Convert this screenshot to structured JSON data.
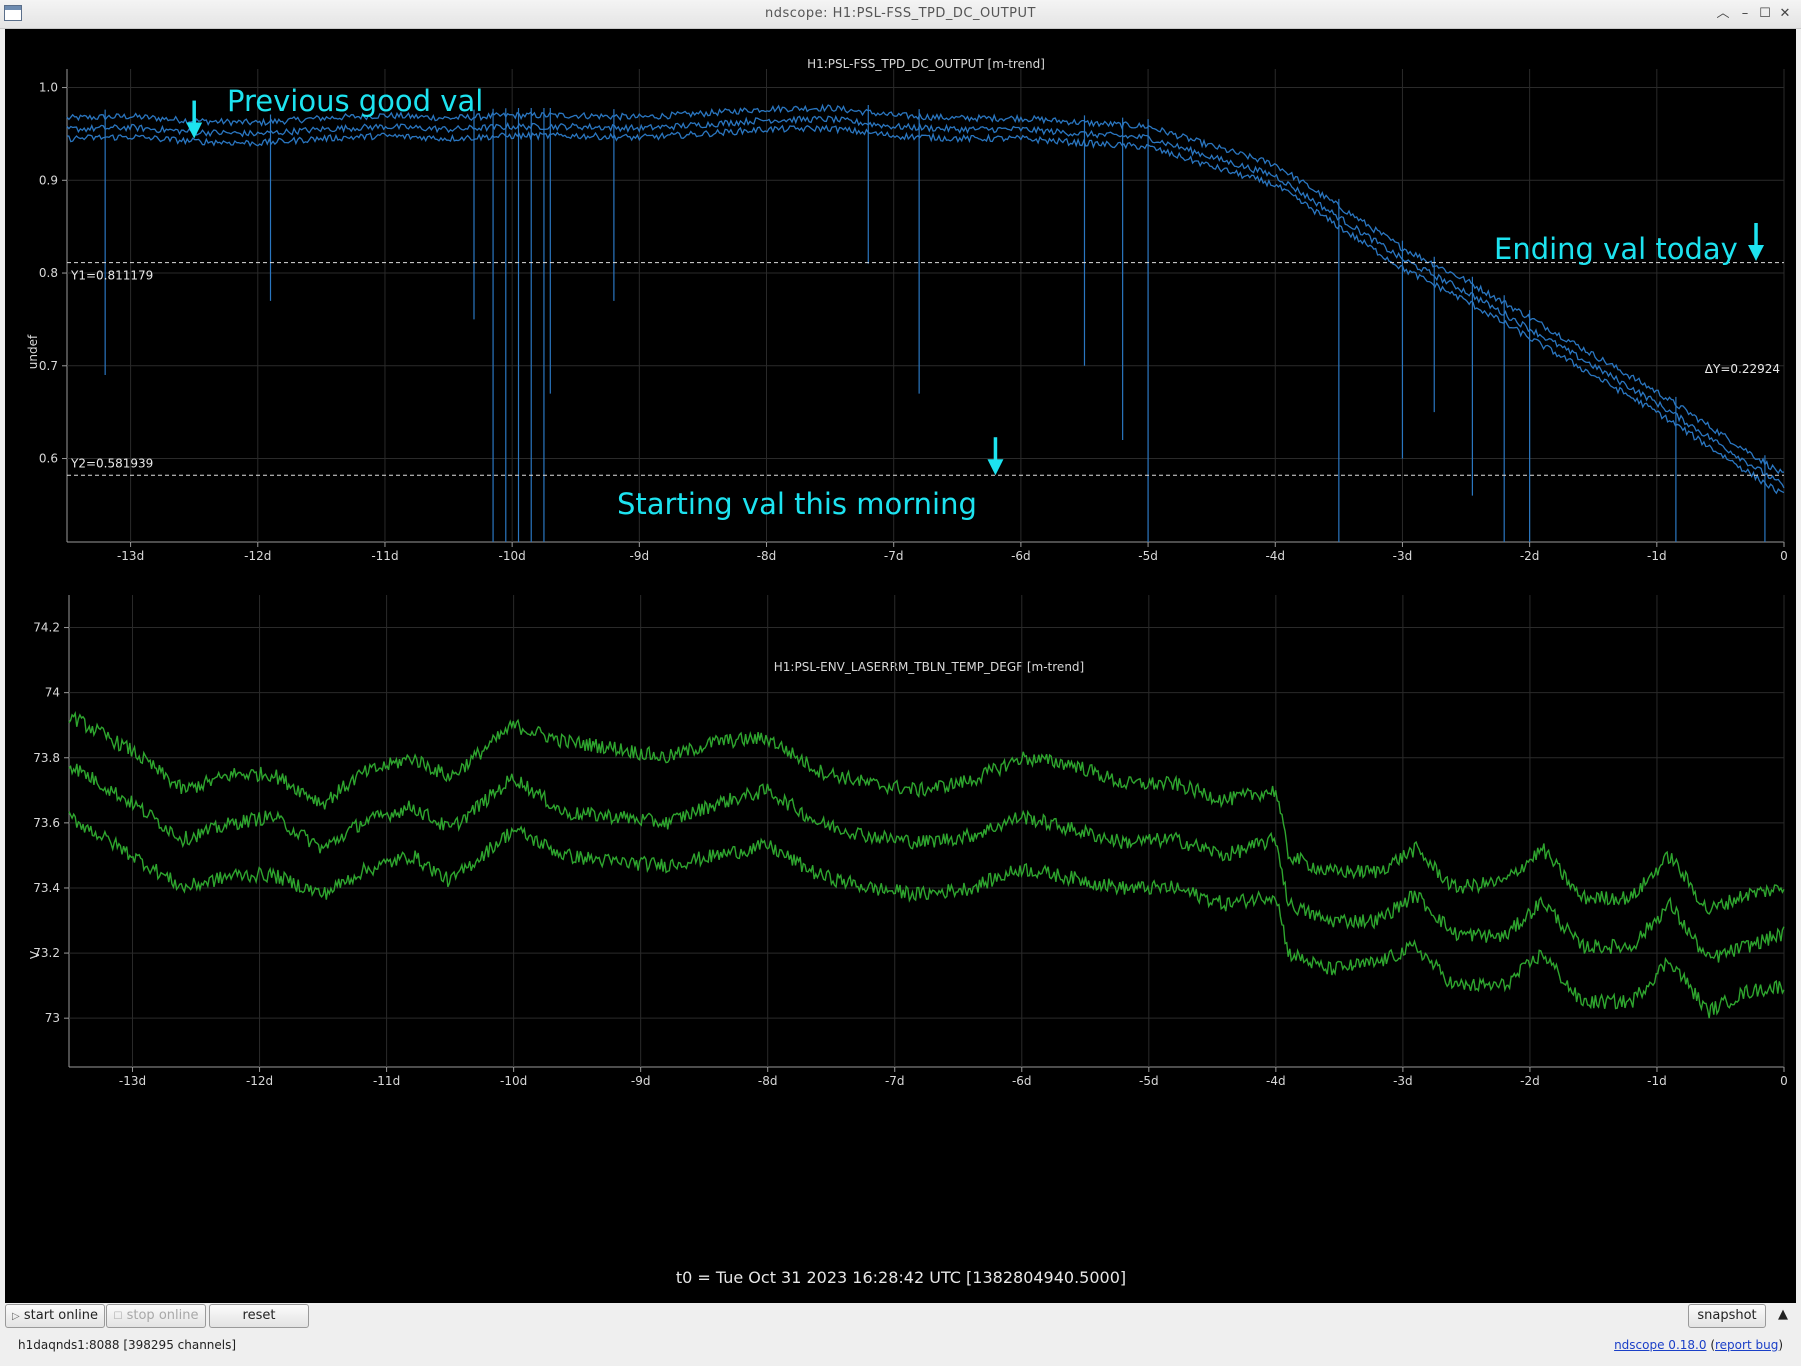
{
  "window": {
    "title": "ndscope: H1:PSL-FSS_TPD_DC_OUTPUT",
    "controls": [
      "chevron-up-icon",
      "minimize-icon",
      "maximize-icon",
      "close-icon"
    ]
  },
  "toolbar": {
    "start_online": "start online",
    "stop_online": "stop online",
    "reset": "reset",
    "snapshot": "snapshot"
  },
  "status": {
    "server": "h1daqnds1:8088  [398295 channels]",
    "version_link": "ndscope 0.18.0",
    "report_link": "report bug"
  },
  "t0_label": "t0 = Tue Oct 31 2023 16:28:42 UTC [1382804940.5000]",
  "colors": {
    "plot_background": "#000000",
    "series_top": "#2a76c0",
    "series_bottom": "#2ea52e",
    "annotation": "#1de3f0",
    "cursor": "#dddddd"
  },
  "cursors": {
    "y1_label": "Y1=0.811179",
    "y2_label": "Y2=0.581939",
    "dy_label": "ΔY=0.22924",
    "y1": 0.811179,
    "y2": 0.581939
  },
  "annotations": [
    {
      "text": "Previous good val",
      "arrow_x": -12.5,
      "arrow_y": 0.945
    },
    {
      "text": "Ending val today",
      "arrow_x": -0.22,
      "arrow_y": 0.813
    },
    {
      "text": "Starting val this morning",
      "arrow_x": -6.2,
      "arrow_y": 0.582
    }
  ],
  "chart_data": [
    {
      "type": "line",
      "title": "H1:PSL-FSS_TPD_DC_OUTPUT [m-trend]",
      "ylabel": "undef",
      "xlabel": "",
      "xlim": [
        -13.5,
        0
      ],
      "ylim": [
        0.51,
        1.02
      ],
      "x_ticks": [
        "-13d",
        "-12d",
        "-11d",
        "-10d",
        "-9d",
        "-8d",
        "-7d",
        "-6d",
        "-5d",
        "-4d",
        "-3d",
        "-2d",
        "-1d",
        "0"
      ],
      "y_ticks": [
        "1.0",
        "0.9",
        "0.8",
        "0.7",
        "0.6"
      ],
      "grid": true,
      "x": [
        -13.5,
        -13,
        -12.5,
        -12,
        -11.5,
        -11,
        -10.5,
        -10,
        -9.5,
        -9,
        -8.5,
        -8,
        -7.5,
        -7,
        -6.5,
        -6,
        -5.5,
        -5,
        -4.5,
        -4,
        -3.5,
        -3,
        -2.5,
        -2,
        -1.5,
        -1,
        -0.5,
        0
      ],
      "series": [
        {
          "values": [
            0.955,
            0.957,
            0.952,
            0.95,
            0.955,
            0.958,
            0.955,
            0.958,
            0.958,
            0.956,
            0.96,
            0.965,
            0.966,
            0.958,
            0.955,
            0.955,
            0.95,
            0.946,
            0.925,
            0.905,
            0.86,
            0.815,
            0.78,
            0.74,
            0.7,
            0.66,
            0.615,
            0.57
          ]
        }
      ],
      "spikes": [
        {
          "x": -13.2,
          "min": 0.69
        },
        {
          "x": -11.9,
          "min": 0.77
        },
        {
          "x": -10.3,
          "min": 0.75
        },
        {
          "x": -10.15,
          "min": 0.51
        },
        {
          "x": -10.05,
          "min": 0.51
        },
        {
          "x": -9.95,
          "min": 0.51
        },
        {
          "x": -9.85,
          "min": 0.51
        },
        {
          "x": -9.75,
          "min": 0.51
        },
        {
          "x": -9.7,
          "min": 0.67
        },
        {
          "x": -9.2,
          "min": 0.77
        },
        {
          "x": -7.2,
          "min": 0.81
        },
        {
          "x": -6.8,
          "min": 0.67
        },
        {
          "x": -5.5,
          "min": 0.7
        },
        {
          "x": -5.2,
          "min": 0.62
        },
        {
          "x": -5.0,
          "min": 0.51
        },
        {
          "x": -3.5,
          "min": 0.51
        },
        {
          "x": -3.0,
          "min": 0.6
        },
        {
          "x": -2.75,
          "min": 0.65
        },
        {
          "x": -2.45,
          "min": 0.56
        },
        {
          "x": -2.2,
          "min": 0.51
        },
        {
          "x": -2.0,
          "min": 0.51
        },
        {
          "x": -0.85,
          "min": 0.51
        },
        {
          "x": -0.15,
          "min": 0.51
        }
      ]
    },
    {
      "type": "line",
      "title": "H1:PSL-ENV_LASERRM_TBLN_TEMP_DEGF [m-trend]",
      "ylabel": "V",
      "xlabel": "",
      "xlim": [
        -13.5,
        0
      ],
      "ylim": [
        72.85,
        74.3
      ],
      "x_ticks": [
        "-13d",
        "-12d",
        "-11d",
        "-10d",
        "-9d",
        "-8d",
        "-7d",
        "-6d",
        "-5d",
        "-4d",
        "-3d",
        "-2d",
        "-1d",
        "0"
      ],
      "y_ticks": [
        "74.2",
        "74",
        "73.8",
        "73.6",
        "73.4",
        "73.2",
        "73"
      ],
      "grid": true,
      "x": [
        -13.5,
        -13,
        -12.6,
        -12.2,
        -11.9,
        -11.5,
        -11.2,
        -10.8,
        -10.5,
        -10.0,
        -9.6,
        -9.2,
        -8.8,
        -8.4,
        -8.0,
        -7.6,
        -7.2,
        -6.8,
        -6.4,
        -6.0,
        -5.6,
        -5.2,
        -4.8,
        -4.4,
        -4.0,
        -3.9,
        -3.6,
        -3.2,
        -2.9,
        -2.6,
        -2.2,
        -1.9,
        -1.6,
        -1.2,
        -0.9,
        -0.6,
        -0.3,
        0
      ],
      "series": [
        {
          "name": "max",
          "values": [
            73.93,
            73.82,
            73.7,
            73.75,
            73.75,
            73.66,
            73.75,
            73.8,
            73.74,
            73.9,
            73.85,
            73.83,
            73.8,
            73.85,
            73.86,
            73.76,
            73.72,
            73.7,
            73.73,
            73.8,
            73.78,
            73.72,
            73.72,
            73.67,
            73.7,
            73.5,
            73.45,
            73.45,
            73.52,
            73.4,
            73.42,
            73.52,
            73.37,
            73.37,
            73.5,
            73.33,
            73.38,
            73.4
          ]
        },
        {
          "name": "mean",
          "values": [
            73.78,
            73.66,
            73.55,
            73.6,
            73.62,
            73.52,
            73.6,
            73.65,
            73.58,
            73.74,
            73.63,
            73.62,
            73.6,
            73.66,
            73.7,
            73.6,
            73.56,
            73.54,
            73.56,
            73.62,
            73.58,
            73.54,
            73.55,
            73.5,
            73.55,
            73.35,
            73.3,
            73.3,
            73.38,
            73.26,
            73.25,
            73.36,
            73.22,
            73.22,
            73.35,
            73.18,
            73.22,
            73.26
          ]
        },
        {
          "name": "min",
          "values": [
            73.62,
            73.5,
            73.4,
            73.44,
            73.44,
            73.38,
            73.45,
            73.5,
            73.42,
            73.58,
            73.5,
            73.48,
            73.47,
            73.5,
            73.53,
            73.44,
            73.4,
            73.38,
            73.4,
            73.46,
            73.43,
            73.4,
            73.4,
            73.35,
            73.38,
            73.2,
            73.15,
            73.17,
            73.22,
            73.1,
            73.1,
            73.2,
            73.05,
            73.05,
            73.18,
            73.02,
            73.08,
            73.1
          ]
        }
      ]
    }
  ]
}
